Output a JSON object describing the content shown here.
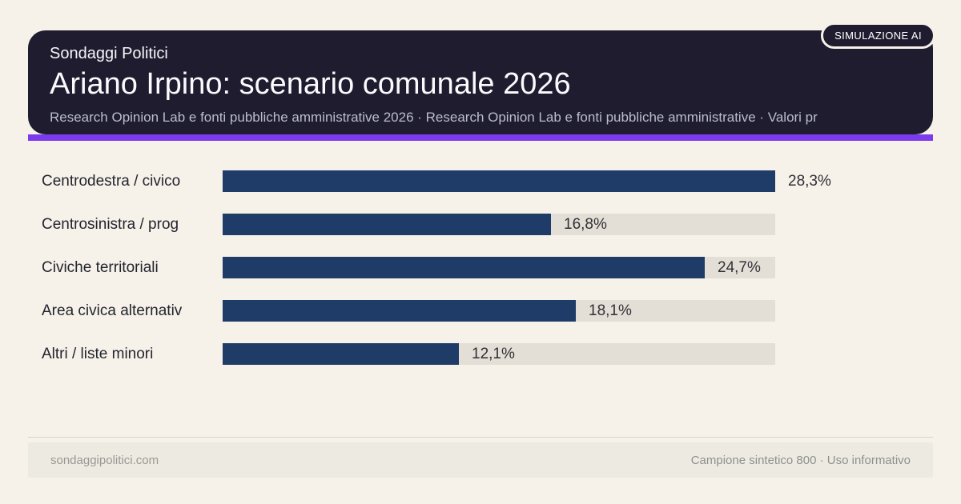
{
  "badge": {
    "label": "SIMULAZIONE AI"
  },
  "header": {
    "kicker": "Sondaggi Politici",
    "title": "Ariano Irpino: scenario comunale 2026",
    "subtitle": "Research Opinion Lab e fonti pubbliche amministrative 2026 · Research Opinion Lab e fonti pubbliche amministrative · Valori pr"
  },
  "chart_data": {
    "type": "bar",
    "orientation": "horizontal",
    "title": "Ariano Irpino: scenario comunale 2026",
    "categories": [
      "Centrodestra / civico",
      "Centrosinistra / prog",
      "Civiche territoriali",
      "Area civica alternativ",
      "Altri / liste minori"
    ],
    "values": [
      28.3,
      16.8,
      24.7,
      18.1,
      12.1
    ],
    "value_labels": [
      "28,3%",
      "16,8%",
      "24,7%",
      "18,1%",
      "12,1%"
    ],
    "max_scale": 28.3,
    "xlabel": "",
    "ylabel": "",
    "grid": false,
    "legend": false,
    "bar_color": "#1f3c68",
    "track_color": "#e4dfd6"
  },
  "footer": {
    "left": "sondaggipolitici.com",
    "right": "Campione sintetico 800 · Uso informativo"
  },
  "colors": {
    "background": "#f6f1e9",
    "card": "#1f1c30",
    "accent": "#7c3aed",
    "bar": "#1f3c68",
    "track": "#e4dfd6"
  }
}
